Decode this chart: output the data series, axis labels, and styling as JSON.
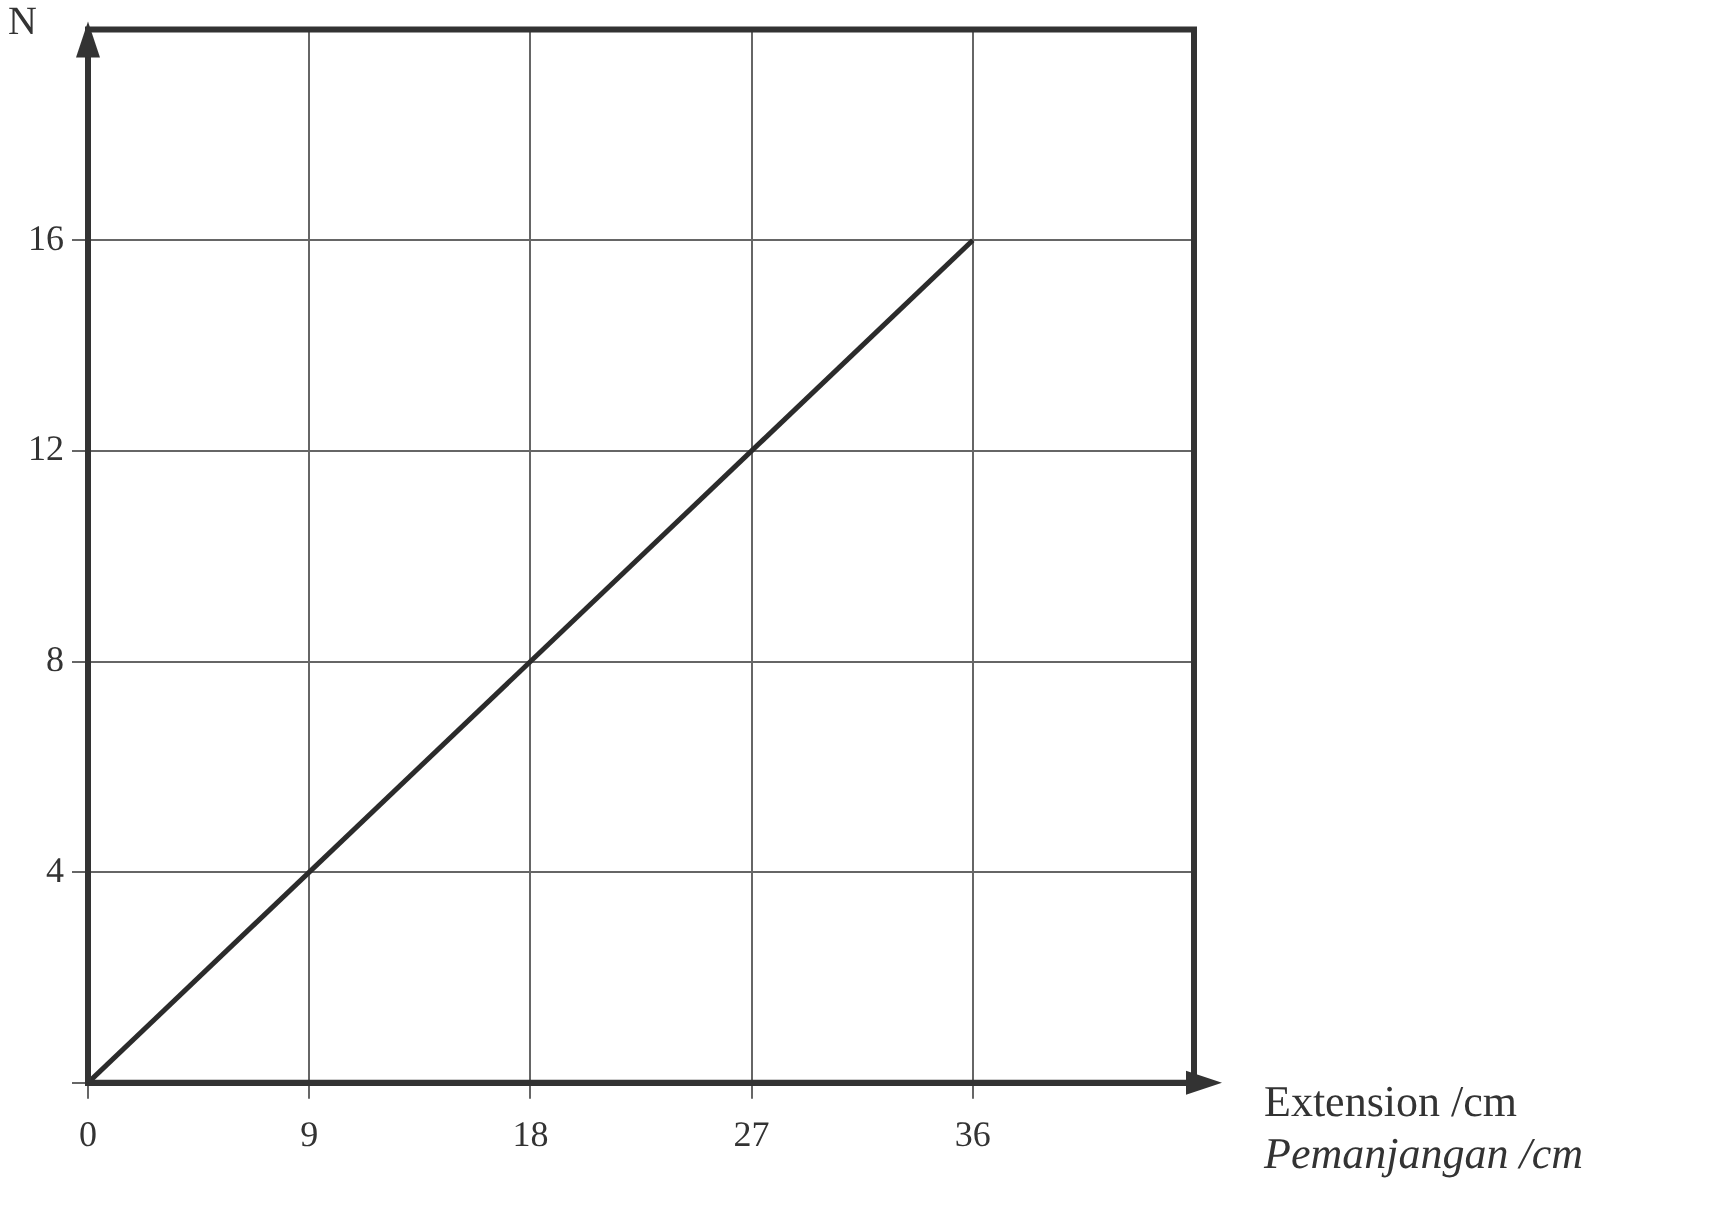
{
  "chart_data": {
    "type": "line",
    "ylabel": "N",
    "xlabel": "Extension /cm\nPemanjangan /cm",
    "x": [
      0,
      36
    ],
    "series": [
      {
        "color": "#2b2b2b",
        "values": [
          0,
          16
        ]
      }
    ],
    "xlim": [
      0,
      45
    ],
    "xticks": [
      0,
      9,
      18,
      27,
      36
    ],
    "ylim": [
      0,
      20
    ],
    "yticks": [
      {
        "value": 0,
        "label": null
      },
      4,
      8,
      12,
      16
    ],
    "grid": true,
    "legend": false,
    "marker": "none",
    "line_style": "solid"
  }
}
